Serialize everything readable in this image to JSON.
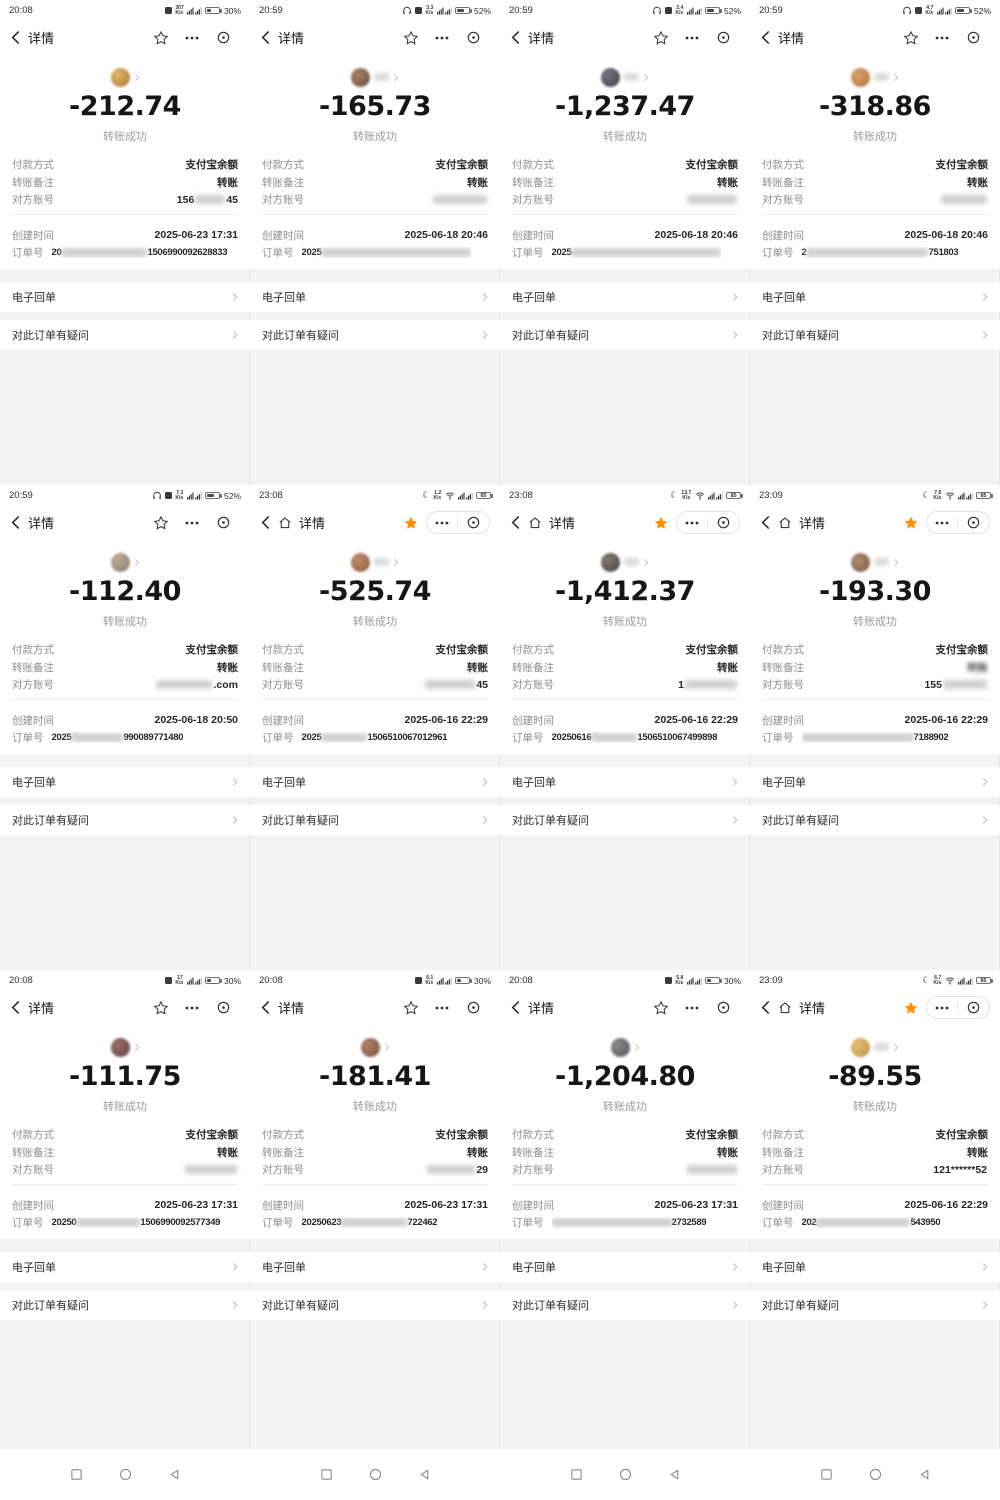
{
  "labels": {
    "title": "详情",
    "success": "转账成功",
    "pay_method": "付款方式",
    "pay_value": "支付宝余额",
    "note": "转账备注",
    "note_value": "转账",
    "account": "对方账号",
    "created": "创建时间",
    "order": "订单号",
    "receipt": "电子回单",
    "question": "对此订单有疑问",
    "speed_unit": "K/s"
  },
  "colors": {
    "accent_star": "#ff8f00",
    "page_gray": "#f3f3f4",
    "text_dark": "#262626",
    "text_gray": "#8c8c8c"
  },
  "icon_names": {
    "status": [
      "moon-icon",
      "headset-icon",
      "app-badge-icon",
      "network-speed",
      "wifi-icon",
      "dual-signal-icon",
      "battery-icon"
    ],
    "nav": [
      "back-icon",
      "home-icon",
      "star-icon",
      "more-dots-icon",
      "target-icon"
    ],
    "android": [
      "recents-square-icon",
      "home-circle-icon",
      "back-triangle-icon"
    ],
    "row": [
      "chevron-right-icon"
    ]
  },
  "cells": [
    {
      "time": "20:08",
      "speed": "307",
      "battery": "30%",
      "battery_style": "percent",
      "moon": false,
      "headphone": false,
      "appbox": true,
      "wifi": false,
      "nav_home": false,
      "starred": false,
      "name_smudge": false,
      "note_blur": false,
      "amount": "-212.74",
      "created": "2025-06-23 17:31",
      "avatar_color": "#a8752f",
      "avatar_hi": "#e2b66a",
      "account": {
        "pre": "156",
        "blur": 30,
        "post": "45"
      },
      "order": {
        "pre": "20",
        "blur": 86,
        "post": "1506990092628833"
      }
    },
    {
      "time": "20:59",
      "speed": "3.3",
      "battery": "52%",
      "battery_style": "percent",
      "moon": false,
      "headphone": true,
      "appbox": true,
      "wifi": false,
      "nav_home": false,
      "starred": false,
      "name_smudge": true,
      "note_blur": false,
      "amount": "-165.73",
      "created": "2025-06-18 20:46",
      "avatar_color": "#6d4b38",
      "avatar_hi": "#a3826a",
      "account": {
        "pre": "",
        "blur": 54,
        "post": ""
      },
      "order": {
        "pre": "2025",
        "blur": 150,
        "post": ""
      }
    },
    {
      "time": "20:59",
      "speed": "2.4",
      "battery": "52%",
      "battery_style": "percent",
      "moon": false,
      "headphone": true,
      "appbox": true,
      "wifi": false,
      "nav_home": false,
      "starred": false,
      "name_smudge": true,
      "note_blur": false,
      "amount": "-1,237.47",
      "created": "2025-06-18 20:46",
      "avatar_color": "#3f3d46",
      "avatar_hi": "#75737e",
      "account": {
        "pre": "",
        "blur": 50,
        "post": ""
      },
      "order": {
        "pre": "2025",
        "blur": 150,
        "post": ""
      }
    },
    {
      "time": "20:59",
      "speed": "4.7",
      "battery": "52%",
      "battery_style": "percent",
      "moon": false,
      "headphone": true,
      "appbox": true,
      "wifi": false,
      "nav_home": false,
      "starred": false,
      "name_smudge": true,
      "note_blur": false,
      "amount": "-318.86",
      "created": "2025-06-18 20:46",
      "avatar_color": "#b0703a",
      "avatar_hi": "#d9a06a",
      "account": {
        "pre": "",
        "blur": 46,
        "post": ""
      },
      "order": {
        "pre": "2",
        "blur": 122,
        "post": "751803"
      }
    },
    {
      "time": "20:59",
      "speed": "7.3",
      "battery": "52%",
      "battery_style": "percent",
      "moon": false,
      "headphone": true,
      "appbox": true,
      "wifi": false,
      "nav_home": false,
      "starred": false,
      "name_smudge": false,
      "note_blur": false,
      "amount": "-112.40",
      "created": "2025-06-18 20:50",
      "avatar_color": "#8b7a68",
      "avatar_hi": "#bcab97",
      "account": {
        "pre": "",
        "blur": 56,
        "post": ".com"
      },
      "order": {
        "pre": "2025",
        "blur": 52,
        "post": "990089771480"
      }
    },
    {
      "time": "23:08",
      "speed": "1.2",
      "battery": "85",
      "battery_style": "boxed",
      "moon": true,
      "headphone": false,
      "appbox": false,
      "wifi": true,
      "nav_home": true,
      "starred": true,
      "name_smudge": true,
      "note_blur": false,
      "amount": "-525.74",
      "created": "2025-06-16 22:29",
      "avatar_color": "#8a5a40",
      "avatar_hi": "#c08c67",
      "account": {
        "pre": "",
        "blur": 50,
        "post": "45"
      },
      "order": {
        "pre": "2025",
        "blur": 46,
        "post": "1506510067012961"
      }
    },
    {
      "time": "23:08",
      "speed": "13.7",
      "battery": "85",
      "battery_style": "boxed",
      "moon": true,
      "headphone": false,
      "appbox": false,
      "wifi": true,
      "nav_home": true,
      "starred": true,
      "name_smudge": true,
      "note_blur": false,
      "amount": "-1,412.37",
      "created": "2025-06-16 22:29",
      "avatar_color": "#474340",
      "avatar_hi": "#7d7871",
      "account": {
        "pre": "1",
        "blur": 52,
        "post": ""
      },
      "order": {
        "pre": "20250616",
        "blur": 46,
        "post": "1506510067499898"
      }
    },
    {
      "time": "23:09",
      "speed": "7.6",
      "battery": "85",
      "battery_style": "boxed",
      "moon": true,
      "headphone": false,
      "appbox": false,
      "wifi": true,
      "nav_home": true,
      "starred": true,
      "name_smudge": true,
      "note_blur": true,
      "amount": "-193.30",
      "created": "2025-06-16 22:29",
      "avatar_color": "#7d5a48",
      "avatar_hi": "#b08a70",
      "account": {
        "pre": "155",
        "blur": 44,
        "post": ""
      },
      "order": {
        "pre": "",
        "blur": 112,
        "post": "7188902"
      }
    },
    {
      "time": "20:08",
      "speed": "17",
      "battery": "30%",
      "battery_style": "percent",
      "moon": false,
      "headphone": false,
      "appbox": true,
      "wifi": false,
      "nav_home": false,
      "starred": false,
      "name_smudge": false,
      "note_blur": false,
      "amount": "-111.75",
      "created": "2025-06-23 17:31",
      "avatar_color": "#5c4343",
      "avatar_hi": "#9c6b66",
      "account": {
        "pre": "",
        "blur": 52,
        "post": ""
      },
      "order": {
        "pre": "20250",
        "blur": 64,
        "post": "1506990092577349"
      }
    },
    {
      "time": "20:08",
      "speed": "6.1",
      "battery": "30%",
      "battery_style": "percent",
      "moon": false,
      "headphone": false,
      "appbox": true,
      "wifi": false,
      "nav_home": false,
      "starred": false,
      "name_smudge": false,
      "note_blur": false,
      "amount": "-181.41",
      "created": "2025-06-23 17:31",
      "avatar_color": "#7a5240",
      "avatar_hi": "#ad8066",
      "account": {
        "pre": "",
        "blur": 48,
        "post": "29"
      },
      "order": {
        "pre": "20250623",
        "blur": 66,
        "post": "722462"
      }
    },
    {
      "time": "20:08",
      "speed": "5.8",
      "battery": "30%",
      "battery_style": "percent",
      "moon": false,
      "headphone": false,
      "appbox": true,
      "wifi": false,
      "nav_home": false,
      "starred": false,
      "name_smudge": false,
      "note_blur": false,
      "amount": "-1,204.80",
      "created": "2025-06-23 17:31",
      "avatar_color": "#56525a",
      "avatar_hi": "#8c8890",
      "account": {
        "pre": "",
        "blur": 50,
        "post": ""
      },
      "order": {
        "pre": "",
        "blur": 120,
        "post": "2732589"
      }
    },
    {
      "time": "23:09",
      "speed": "6.7",
      "battery": "85",
      "battery_style": "boxed",
      "moon": true,
      "headphone": false,
      "appbox": false,
      "wifi": true,
      "nav_home": true,
      "starred": true,
      "name_smudge": true,
      "note_blur": false,
      "amount": "-89.55",
      "created": "2025-06-16 22:29",
      "avatar_color": "#b98f45",
      "avatar_hi": "#e3c077",
      "account": {
        "pre": "121******52",
        "blur": 0,
        "post": ""
      },
      "order": {
        "pre": "202",
        "blur": 94,
        "post": "543950"
      }
    }
  ]
}
